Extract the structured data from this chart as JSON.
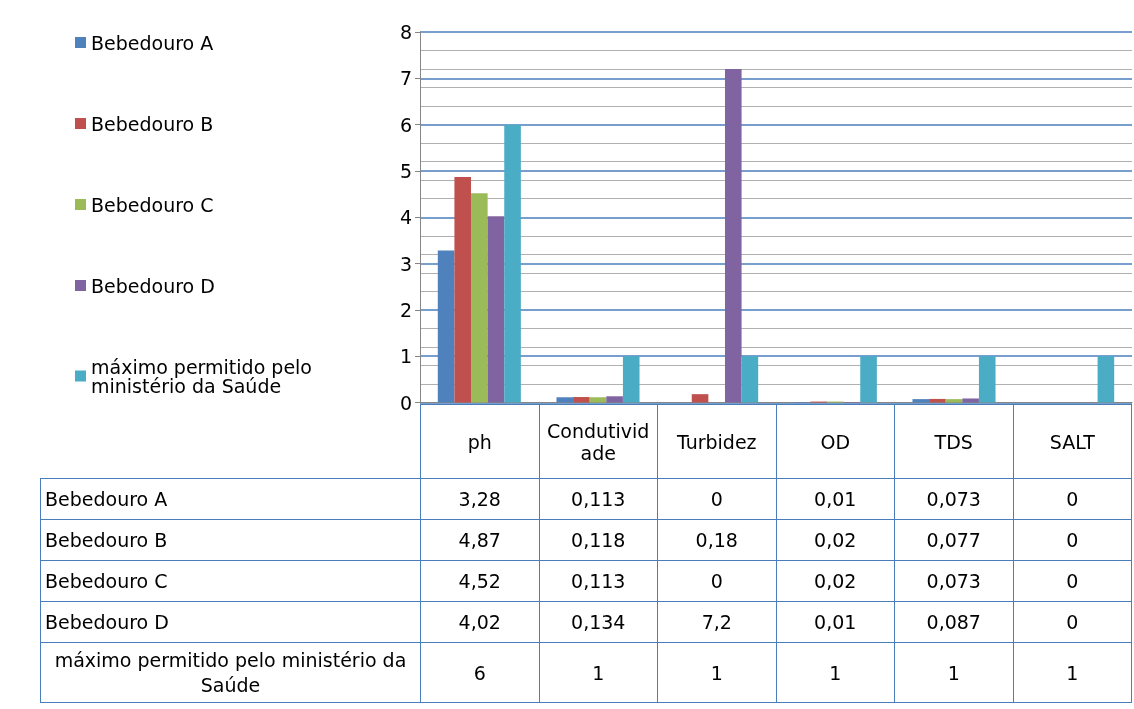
{
  "chart_data": {
    "type": "bar",
    "categories": [
      "ph",
      "Condutividade",
      "Turbidez",
      "OD",
      "TDS",
      "SALT"
    ],
    "series": [
      {
        "name": "Bebedouro A",
        "color": "#4f81bd",
        "values": [
          3.28,
          0.113,
          0,
          0.01,
          0.073,
          0
        ],
        "value_labels": [
          "3,28",
          "0,113",
          "0",
          "0,01",
          "0,073",
          "0"
        ]
      },
      {
        "name": "Bebedouro B",
        "color": "#c0504d",
        "values": [
          4.87,
          0.118,
          0.18,
          0.02,
          0.077,
          0
        ],
        "value_labels": [
          "4,87",
          "0,118",
          "0,18",
          "0,02",
          "0,077",
          "0"
        ]
      },
      {
        "name": "Bebedouro C",
        "color": "#9bbb59",
        "values": [
          4.52,
          0.113,
          0,
          0.02,
          0.073,
          0
        ],
        "value_labels": [
          "4,52",
          "0,113",
          "0",
          "0,02",
          "0,073",
          "0"
        ]
      },
      {
        "name": "Bebedouro D",
        "color": "#8064a2",
        "values": [
          4.02,
          0.134,
          7.2,
          0.01,
          0.087,
          0
        ],
        "value_labels": [
          "4,02",
          "0,134",
          "7,2",
          "0,01",
          "0,087",
          "0"
        ]
      },
      {
        "name": "máximo permitido pelo ministério da Saúde",
        "color": "#4bacc6",
        "values": [
          6,
          1,
          1,
          1,
          1,
          1
        ],
        "value_labels": [
          "6",
          "1",
          "1",
          "1",
          "1",
          "1"
        ]
      }
    ],
    "ylim": [
      0,
      8
    ],
    "yticks": [
      0,
      1,
      2,
      3,
      4,
      5,
      6,
      7,
      8
    ],
    "grid": "y",
    "legend": "left"
  }
}
